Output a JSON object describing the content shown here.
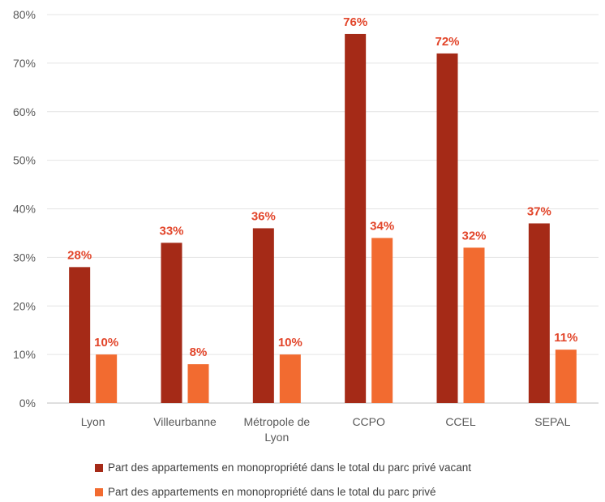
{
  "chart_data": {
    "type": "bar",
    "categories": [
      "Lyon",
      "Villeurbanne",
      "Métropole de Lyon",
      "CCPO",
      "CCEL",
      "SEPAL"
    ],
    "category_lines": [
      [
        "Lyon"
      ],
      [
        "Villeurbanne"
      ],
      [
        "Métropole de",
        "Lyon"
      ],
      [
        "CCPO"
      ],
      [
        "CCEL"
      ],
      [
        "SEPAL"
      ]
    ],
    "series": [
      {
        "name": "Part des appartements en monopropriété dans le total du parc privé vacant",
        "values": [
          28,
          33,
          36,
          76,
          72,
          37
        ],
        "labels": [
          "28%",
          "33%",
          "36%",
          "76%",
          "72%",
          "37%"
        ],
        "color": "#A52A17"
      },
      {
        "name": "Part des appartements en monopropriété dans le total du parc privé",
        "values": [
          10,
          8,
          10,
          34,
          32,
          11
        ],
        "labels": [
          "10%",
          "8%",
          "10%",
          "34%",
          "32%",
          "11%"
        ],
        "color": "#F26B30"
      }
    ],
    "ylim": [
      0,
      80
    ],
    "yticks": [
      "0%",
      "10%",
      "20%",
      "30%",
      "40%",
      "50%",
      "60%",
      "70%",
      "80%"
    ],
    "grid": true,
    "legend_position": "bottom",
    "label_color": "#E2452A"
  }
}
